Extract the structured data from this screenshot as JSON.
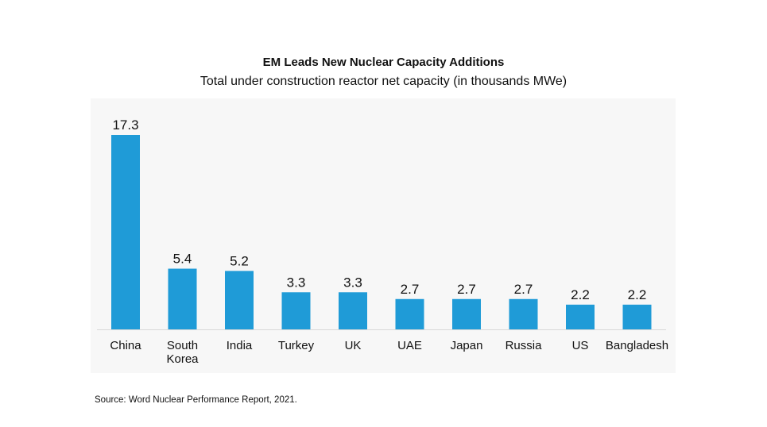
{
  "chart_data": {
    "type": "bar",
    "title": "EM Leads New Nuclear Capacity Additions",
    "subtitle": "Total under construction reactor net capacity (in thousands MWe)",
    "categories": [
      "China",
      "South\nKorea",
      "India",
      "Turkey",
      "UK",
      "UAE",
      "Japan",
      "Russia",
      "US",
      "Bangladesh"
    ],
    "values": [
      17.3,
      5.4,
      5.2,
      3.3,
      3.3,
      2.7,
      2.7,
      2.7,
      2.2,
      2.2
    ],
    "value_labels": [
      "17.3",
      "5.4",
      "5.2",
      "3.3",
      "3.3",
      "2.7",
      "2.7",
      "2.7",
      "2.2",
      "2.2"
    ],
    "ylim": [
      0,
      17.3
    ],
    "grid": false,
    "bar_color": "#1f9bd7",
    "source": "Source: Word Nuclear Performance Report, 2021."
  }
}
